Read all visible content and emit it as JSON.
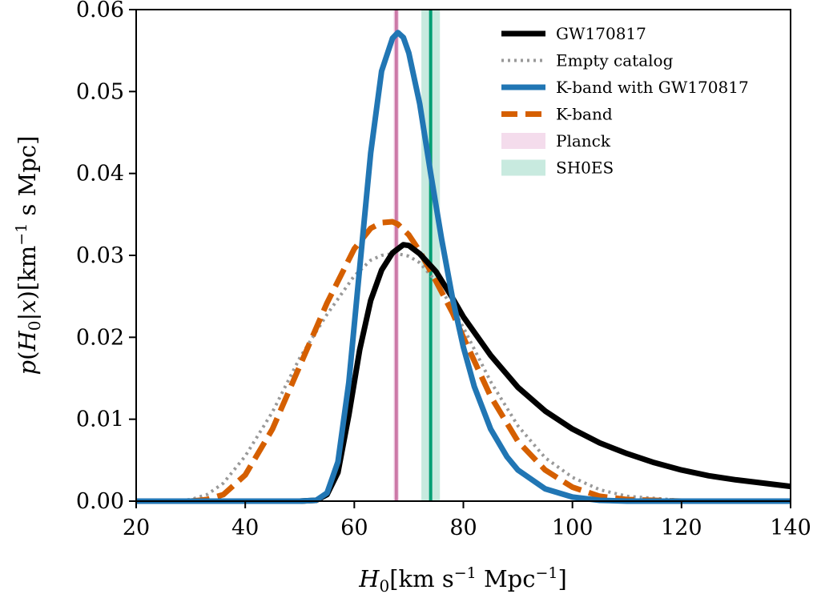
{
  "chart_data": {
    "type": "line",
    "xlabel": "H_0[km s^-1 Mpc^-1]",
    "ylabel": "p(H_0|x)[km^-1 s Mpc]",
    "xlim": [
      20,
      140
    ],
    "ylim": [
      0,
      0.06
    ],
    "xticks": [
      "20",
      "40",
      "60",
      "80",
      "100",
      "120",
      "140"
    ],
    "yticks": [
      "0.00",
      "0.01",
      "0.02",
      "0.03",
      "0.04",
      "0.05",
      "0.06"
    ],
    "legend_position": "top-right",
    "series": [
      {
        "name": "GW170817",
        "color": "#000000",
        "style": "solid",
        "x": [
          20,
          40,
          50,
          53,
          55,
          57,
          59,
          61,
          63,
          65,
          67,
          69,
          70,
          72,
          75,
          78,
          80,
          85,
          90,
          95,
          100,
          105,
          110,
          115,
          120,
          125,
          130,
          135,
          140
        ],
        "y": [
          0,
          0,
          0,
          0.0001,
          0.0008,
          0.0035,
          0.0105,
          0.0185,
          0.0245,
          0.0282,
          0.0303,
          0.0313,
          0.0312,
          0.0302,
          0.028,
          0.0248,
          0.0225,
          0.0178,
          0.0139,
          0.011,
          0.0088,
          0.0071,
          0.0058,
          0.0047,
          0.0038,
          0.0031,
          0.0026,
          0.0022,
          0.0018
        ]
      },
      {
        "name": "Empty catalog",
        "color": "#999999",
        "style": "dotted",
        "x": [
          20,
          25,
          30,
          33,
          36,
          40,
          45,
          50,
          55,
          60,
          63,
          65,
          67,
          68,
          70,
          72,
          75,
          78,
          80,
          85,
          90,
          95,
          100,
          105,
          110,
          120,
          130,
          140
        ],
        "y": [
          0,
          0,
          0.0002,
          0.0008,
          0.0022,
          0.0055,
          0.0109,
          0.0175,
          0.0228,
          0.0275,
          0.0294,
          0.03,
          0.0302,
          0.0302,
          0.0299,
          0.0291,
          0.0268,
          0.0236,
          0.0212,
          0.0146,
          0.0092,
          0.0053,
          0.0029,
          0.0014,
          0.0006,
          0.0001,
          0,
          0
        ]
      },
      {
        "name": "K-band with GW170817",
        "color": "#2176b4",
        "style": "solid",
        "x": [
          20,
          40,
          50,
          53,
          55,
          57,
          59,
          61,
          63,
          65,
          67,
          68,
          69,
          70,
          72,
          74,
          76,
          78,
          80,
          82,
          85,
          88,
          90,
          95,
          100,
          105,
          110,
          120,
          140
        ],
        "y": [
          0,
          0,
          0,
          0.0001,
          0.001,
          0.0048,
          0.0145,
          0.0285,
          0.0425,
          0.0525,
          0.0565,
          0.0572,
          0.0566,
          0.0547,
          0.0485,
          0.04,
          0.032,
          0.0248,
          0.0188,
          0.014,
          0.0088,
          0.0054,
          0.0038,
          0.0015,
          0.0005,
          0.0001,
          0,
          0,
          0
        ]
      },
      {
        "name": "K-band",
        "color": "#d55f00",
        "style": "dashed",
        "x": [
          20,
          25,
          30,
          33,
          36,
          40,
          45,
          50,
          55,
          60,
          63,
          65,
          67,
          68,
          70,
          72,
          75,
          78,
          80,
          85,
          90,
          95,
          100,
          105,
          110,
          120,
          130,
          140
        ],
        "y": [
          0,
          0,
          0,
          0.0002,
          0.0008,
          0.0032,
          0.0088,
          0.0165,
          0.0242,
          0.0308,
          0.0333,
          0.034,
          0.0341,
          0.0338,
          0.0325,
          0.0305,
          0.0268,
          0.023,
          0.02,
          0.0128,
          0.0073,
          0.0038,
          0.0017,
          0.0006,
          0.0002,
          0,
          0,
          0
        ]
      }
    ],
    "bands": [
      {
        "name": "Planck",
        "center": 67.7,
        "low": 67.2,
        "high": 68.2,
        "color": "#cc79a7",
        "fill": "#f4dcec"
      },
      {
        "name": "SH0ES",
        "center": 74.0,
        "low": 72.3,
        "high": 75.7,
        "color": "#009e73",
        "fill": "#c8eadf"
      }
    ]
  }
}
